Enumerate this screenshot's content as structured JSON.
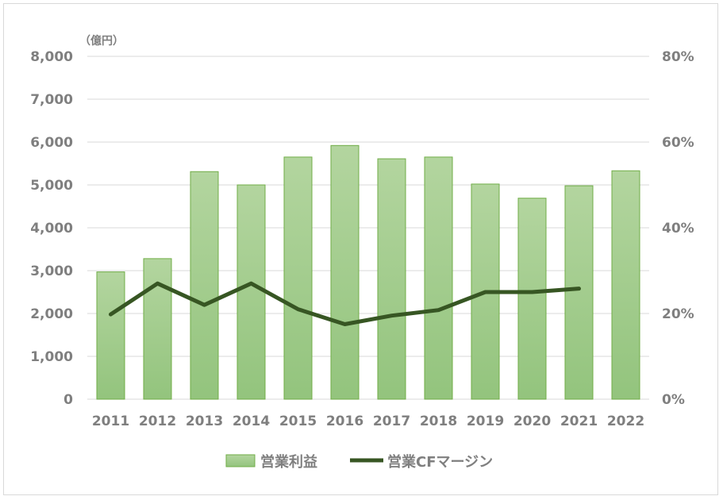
{
  "chart_data": {
    "type": "bar",
    "categories": [
      "2011",
      "2012",
      "2013",
      "2014",
      "2015",
      "2016",
      "2017",
      "2018",
      "2019",
      "2020",
      "2021",
      "2022"
    ],
    "series": [
      {
        "name": "営業利益",
        "type": "bar",
        "axis": "left",
        "values": [
          2970,
          3280,
          5310,
          5000,
          5650,
          5920,
          5610,
          5650,
          5020,
          4690,
          4980,
          5330
        ]
      },
      {
        "name": "営業CFマージン",
        "type": "line",
        "axis": "right",
        "values": [
          19.8,
          27.0,
          22.0,
          27.0,
          21.0,
          17.5,
          19.5,
          20.8,
          25.0,
          25.0,
          25.8,
          null
        ]
      }
    ],
    "y_left": {
      "unit_label": "（億円）",
      "ylim": [
        0,
        8000
      ],
      "ticks": [
        "0",
        "1,000",
        "2,000",
        "3,000",
        "4,000",
        "5,000",
        "6,000",
        "7,000",
        "8,000"
      ]
    },
    "y_right": {
      "ylim": [
        0,
        80
      ],
      "ticks": [
        "0%",
        "20%",
        "40%",
        "60%",
        "80%"
      ]
    },
    "grid": true,
    "legend_position": "bottom",
    "colors": {
      "bar_fill_top": "#b3d59f",
      "bar_fill_bottom": "#93c47d",
      "bar_stroke": "#70ad47",
      "line": "#375623",
      "grid": "#d9d9d9",
      "text": "#7f7f7f"
    }
  }
}
